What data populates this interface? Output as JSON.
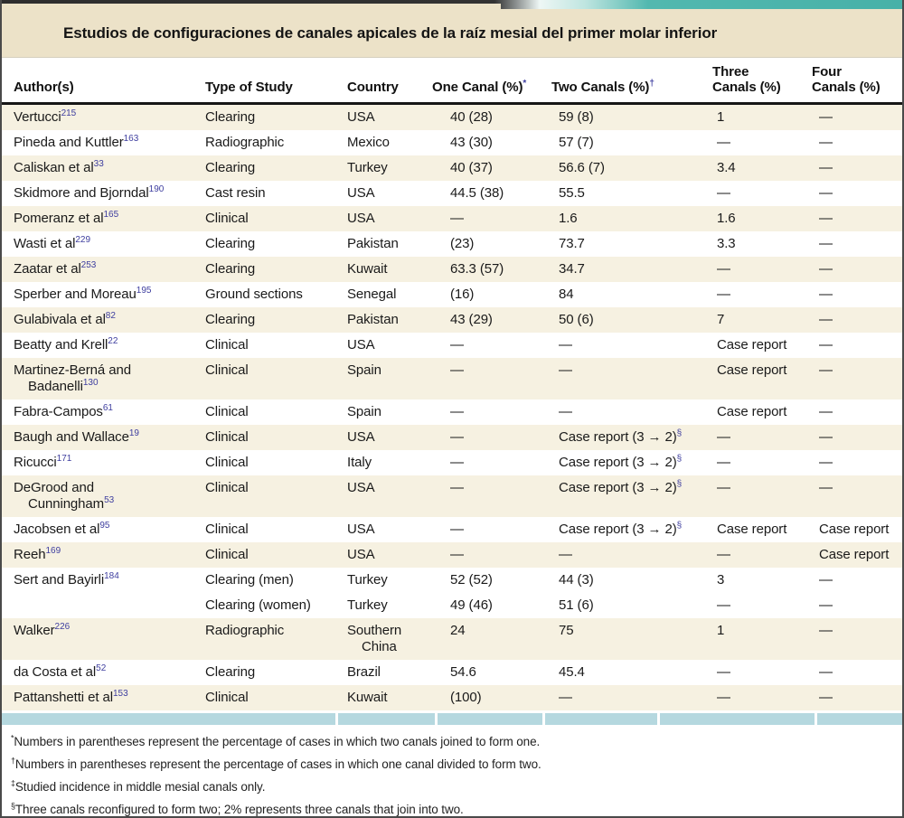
{
  "title": "Estudios de configuraciones de canales apicales de la raíz mesial del primer molar inferior",
  "colors": {
    "accent_teal": "#4eb6ad",
    "title_band_cream": "#ece2c8",
    "row_shade_cream": "#f6f1e1",
    "bottom_strip_blue": "#b5d8df",
    "reference_blue": "#3e3e9f",
    "header_rule_black": "#161616",
    "border_gray": "#4a4a4a"
  },
  "table": {
    "columns": [
      {
        "lines": [
          "Author(s)"
        ],
        "sup": ""
      },
      {
        "lines": [
          "Type of Study"
        ],
        "sup": ""
      },
      {
        "lines": [
          "Country"
        ],
        "sup": ""
      },
      {
        "lines": [
          "One Canal (%)"
        ],
        "sup": "*"
      },
      {
        "lines": [
          "Two Canals (%)"
        ],
        "sup": "†"
      },
      {
        "lines": [
          "Three",
          "Canals (%)"
        ],
        "sup": ""
      },
      {
        "lines": [
          "Four",
          "Canals (%)"
        ],
        "sup": ""
      }
    ],
    "rows": [
      {
        "author": [
          "Vertucci"
        ],
        "author_sup": "215",
        "type": "Clearing",
        "country": [
          "USA"
        ],
        "one": "40 (28)",
        "two": "59 (8)",
        "two_sup": "",
        "three": "1",
        "four": "—"
      },
      {
        "author": [
          "Pineda and Kuttler"
        ],
        "author_sup": "163",
        "type": "Radiographic",
        "country": [
          "Mexico"
        ],
        "one": "43 (30)",
        "two": "57 (7)",
        "two_sup": "",
        "three": "—",
        "four": "—"
      },
      {
        "author": [
          "Caliskan et al"
        ],
        "author_sup": "33",
        "type": "Clearing",
        "country": [
          "Turkey"
        ],
        "one": "40 (37)",
        "two": "56.6 (7)",
        "two_sup": "",
        "three": "3.4",
        "four": "—"
      },
      {
        "author": [
          "Skidmore and Bjorndal"
        ],
        "author_sup": "190",
        "type": "Cast resin",
        "country": [
          "USA"
        ],
        "one": "44.5 (38)",
        "two": "55.5",
        "two_sup": "",
        "three": "—",
        "four": "—"
      },
      {
        "author": [
          "Pomeranz et al"
        ],
        "author_sup": "165",
        "type": "Clinical",
        "country": [
          "USA"
        ],
        "one": "—",
        "two": "1.6",
        "two_sup": "",
        "three": "1.6",
        "four": "—"
      },
      {
        "author": [
          "Wasti et al"
        ],
        "author_sup": "229",
        "type": "Clearing",
        "country": [
          "Pakistan"
        ],
        "one": "(23)",
        "two": "73.7",
        "two_sup": "",
        "three": "3.3",
        "four": "—"
      },
      {
        "author": [
          "Zaatar et al"
        ],
        "author_sup": "253",
        "type": "Clearing",
        "country": [
          "Kuwait"
        ],
        "one": "63.3 (57)",
        "two": "34.7",
        "two_sup": "",
        "three": "—",
        "four": "—"
      },
      {
        "author": [
          "Sperber and Moreau"
        ],
        "author_sup": "195",
        "type": "Ground sections",
        "country": [
          "Senegal"
        ],
        "one": "(16)",
        "two": "84",
        "two_sup": "",
        "three": "—",
        "four": "—"
      },
      {
        "author": [
          "Gulabivala et al"
        ],
        "author_sup": "82",
        "type": "Clearing",
        "country": [
          "Pakistan"
        ],
        "one": "43 (29)",
        "two": "50 (6)",
        "two_sup": "",
        "three": "7",
        "four": "—"
      },
      {
        "author": [
          "Beatty and Krell"
        ],
        "author_sup": "22",
        "type": "Clinical",
        "country": [
          "USA"
        ],
        "one": "—",
        "two": "—",
        "two_sup": "",
        "three": "Case report",
        "four": "—"
      },
      {
        "author": [
          "Martinez-Berná and",
          "Badanelli"
        ],
        "author_sup": "130",
        "type": "Clinical",
        "country": [
          "Spain"
        ],
        "one": "—",
        "two": "—",
        "two_sup": "",
        "three": "Case report",
        "four": "—"
      },
      {
        "author": [
          "Fabra-Campos"
        ],
        "author_sup": "61",
        "type": "Clinical",
        "country": [
          "Spain"
        ],
        "one": "—",
        "two": "—",
        "two_sup": "",
        "three": "Case report",
        "four": "—"
      },
      {
        "author": [
          "Baugh and Wallace"
        ],
        "author_sup": "19",
        "type": "Clinical",
        "country": [
          "USA"
        ],
        "one": "—",
        "two": "Case report (3 → 2)",
        "two_sup": "§",
        "three": "—",
        "four": "—"
      },
      {
        "author": [
          "Ricucci"
        ],
        "author_sup": "171",
        "type": "Clinical",
        "country": [
          "Italy"
        ],
        "one": "—",
        "two": "Case report (3 → 2)",
        "two_sup": "§",
        "three": "—",
        "four": "—"
      },
      {
        "author": [
          "DeGrood and",
          "Cunningham"
        ],
        "author_sup": "53",
        "type": "Clinical",
        "country": [
          "USA"
        ],
        "one": "—",
        "two": "Case report (3 → 2)",
        "two_sup": "§",
        "three": "—",
        "four": "—"
      },
      {
        "author": [
          "Jacobsen et al"
        ],
        "author_sup": "95",
        "type": "Clinical",
        "country": [
          "USA"
        ],
        "one": "—",
        "two": "Case report (3 → 2)",
        "two_sup": "§",
        "three": "Case report",
        "four": "Case report"
      },
      {
        "author": [
          "Reeh"
        ],
        "author_sup": "169",
        "type": "Clinical",
        "country": [
          "USA"
        ],
        "one": "—",
        "two": "—",
        "two_sup": "",
        "three": "—",
        "four": "Case report"
      },
      {
        "author": [
          "Sert and Bayirli"
        ],
        "author_sup": "184",
        "type": "Clearing (men)",
        "country": [
          "Turkey"
        ],
        "one": "52 (52)",
        "two": "44 (3)",
        "two_sup": "",
        "three": "3",
        "four": "—"
      },
      {
        "author": [],
        "author_sup": "",
        "type": "Clearing (women)",
        "country": [
          "Turkey"
        ],
        "one": "49 (46)",
        "two": "51 (6)",
        "two_sup": "",
        "three": "—",
        "four": "—"
      },
      {
        "author": [
          "Walker"
        ],
        "author_sup": "226",
        "type": "Radiographic",
        "country": [
          "Southern",
          "China"
        ],
        "one": "24",
        "two": "75",
        "two_sup": "",
        "three": "1",
        "four": "—"
      },
      {
        "author": [
          "da Costa et al"
        ],
        "author_sup": "52",
        "type": "Clearing",
        "country": [
          "Brazil"
        ],
        "one": "54.6",
        "two": "45.4",
        "two_sup": "",
        "three": "—",
        "four": "—"
      },
      {
        "author": [
          "Pattanshetti et al"
        ],
        "author_sup": "153",
        "type": "Clinical",
        "country": [
          "Kuwait"
        ],
        "one": "(100)",
        "two": "—",
        "two_sup": "",
        "three": "—",
        "four": "—"
      }
    ]
  },
  "footnotes": [
    {
      "sym": "*",
      "text": "Numbers in parentheses represent the percentage of cases in which two canals joined to form one."
    },
    {
      "sym": "†",
      "text": "Numbers in parentheses represent the percentage of cases in which one canal divided to form two."
    },
    {
      "sym": "‡",
      "text": "Studied incidence in middle mesial canals only."
    },
    {
      "sym": "§",
      "text": "Three canals reconfigured to form two; 2% represents three canals that join into two."
    }
  ]
}
